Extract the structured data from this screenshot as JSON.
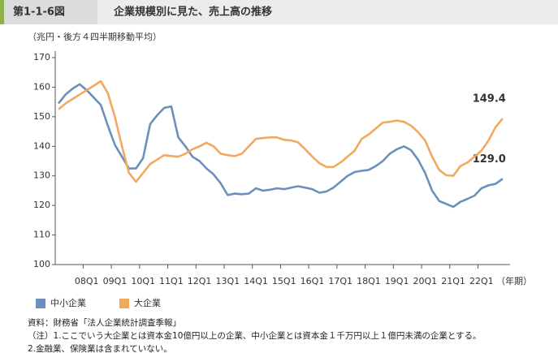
{
  "chart_data": {
    "type": "line",
    "figure_number": "第1-1-6図",
    "title": "企業規模別に見た、売上高の推移",
    "unit_label": "（兆円・後方４四半期移動平均）",
    "xlabel": "（年期）",
    "categories": [
      null,
      null,
      null,
      null,
      "08Q1",
      null,
      null,
      null,
      "09Q1",
      null,
      null,
      null,
      "10Q1",
      null,
      null,
      null,
      "11Q1",
      null,
      null,
      null,
      "12Q1",
      null,
      null,
      null,
      "13Q1",
      null,
      null,
      null,
      "14Q1",
      null,
      null,
      null,
      "15Q1",
      null,
      null,
      null,
      "16Q1",
      null,
      null,
      null,
      "17Q1",
      null,
      null,
      null,
      "18Q1",
      null,
      null,
      null,
      "19Q1",
      null,
      null,
      null,
      "20Q1",
      null,
      null,
      null,
      "21Q1",
      null,
      null,
      null,
      "22Q1",
      null,
      null,
      null
    ],
    "series": [
      {
        "name": "中小企業",
        "color": "#6b90bd",
        "values": [
          154.5,
          157.5,
          159.5,
          161,
          159,
          156.5,
          154,
          147,
          140.5,
          136.5,
          132.5,
          132.5,
          136,
          147.5,
          150.5,
          153,
          153.5,
          143,
          140,
          136.5,
          135,
          132.5,
          130.5,
          127.5,
          123.5,
          124,
          123.8,
          124,
          125.8,
          125,
          125.3,
          125.8,
          125.5,
          126,
          126.5,
          126,
          125.5,
          124.3,
          124.7,
          126,
          128,
          130,
          131.3,
          131.7,
          132,
          133.3,
          135,
          137.5,
          139,
          140,
          138.7,
          135.5,
          131,
          125,
          121.5,
          120.5,
          119.5,
          121.2,
          122.2,
          123.3,
          125.8,
          126.8,
          127.3,
          129.0
        ],
        "value_labels": [
          null,
          null,
          null,
          null,
          null,
          null,
          null,
          null,
          null,
          null,
          null,
          null,
          null,
          null,
          null,
          null,
          null,
          null,
          null,
          null,
          null,
          null,
          null,
          null,
          null,
          null,
          null,
          null,
          null,
          null,
          null,
          null,
          null,
          null,
          null,
          null,
          null,
          null,
          null,
          null,
          null,
          null,
          null,
          null,
          null,
          null,
          null,
          null,
          null,
          null,
          null,
          null,
          null,
          null,
          null,
          null,
          null,
          null,
          null,
          null,
          null,
          null,
          null,
          "129.0"
        ]
      },
      {
        "name": "大企業",
        "color": "#f3a860",
        "values": [
          152.5,
          154.5,
          156,
          157.5,
          159,
          160.5,
          162,
          158,
          150,
          140,
          131,
          128,
          131,
          134,
          135.5,
          137,
          136.7,
          136.5,
          137.5,
          139,
          140,
          141.2,
          140,
          137.5,
          137,
          136.7,
          137.5,
          140,
          142.5,
          142.8,
          143,
          143,
          142.2,
          142,
          141.3,
          139,
          136.5,
          134.3,
          133,
          133,
          134.5,
          136.5,
          138.5,
          142.5,
          144,
          146,
          148,
          148.3,
          148.7,
          148.3,
          147,
          144.8,
          142,
          136.5,
          132,
          130.2,
          130,
          133.3,
          134.5,
          136.5,
          138.5,
          142,
          146.5,
          149.4
        ],
        "value_labels": [
          null,
          null,
          null,
          null,
          null,
          null,
          null,
          null,
          null,
          null,
          null,
          null,
          null,
          null,
          null,
          null,
          null,
          null,
          null,
          null,
          null,
          null,
          null,
          null,
          null,
          null,
          null,
          null,
          null,
          null,
          null,
          null,
          null,
          null,
          null,
          null,
          null,
          null,
          null,
          null,
          null,
          null,
          null,
          null,
          null,
          null,
          null,
          null,
          null,
          null,
          null,
          null,
          null,
          null,
          null,
          null,
          null,
          null,
          null,
          null,
          null,
          null,
          null,
          "149.4"
        ]
      }
    ],
    "ylim": [
      100,
      170
    ],
    "yticks": [
      100,
      110,
      120,
      130,
      140,
      150,
      160,
      170
    ],
    "grid": false,
    "legend": "bottom",
    "notes": [
      "資料：財務省「法人企業統計調査季報」",
      "（注）1.ここでいう大企業とは資本金10億円以上の企業、中小企業とは資本金１千万円以上１億円未満の企業とする。",
      "2.金融業、保険業は含まれていない。"
    ]
  }
}
